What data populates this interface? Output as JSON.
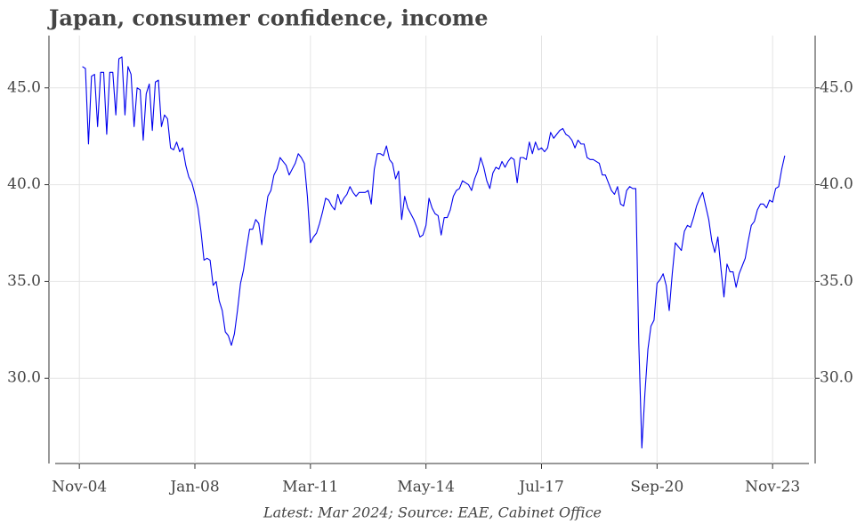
{
  "chart_data": {
    "type": "line",
    "title": "Japan, consumer confidence, income",
    "footnote": "Latest: Mar 2024; Source: EAE, Cabinet Office",
    "color": "#0000ee",
    "grid": true,
    "x": [
      "2004-12",
      "2005-01",
      "2005-02",
      "2005-03",
      "2005-04",
      "2005-05",
      "2005-06",
      "2005-07",
      "2005-08",
      "2005-09",
      "2005-10",
      "2005-11",
      "2005-12",
      "2006-01",
      "2006-02",
      "2006-03",
      "2006-04",
      "2006-05",
      "2006-06",
      "2006-07",
      "2006-08",
      "2006-09",
      "2006-10",
      "2006-11",
      "2006-12",
      "2007-01",
      "2007-02",
      "2007-03",
      "2007-04",
      "2007-05",
      "2007-06",
      "2007-07",
      "2007-08",
      "2007-09",
      "2007-10",
      "2007-11",
      "2007-12",
      "2008-01",
      "2008-02",
      "2008-03",
      "2008-04",
      "2008-05",
      "2008-06",
      "2008-07",
      "2008-08",
      "2008-09",
      "2008-10",
      "2008-11",
      "2008-12",
      "2009-01",
      "2009-02",
      "2009-03",
      "2009-04",
      "2009-05",
      "2009-06",
      "2009-07",
      "2009-08",
      "2009-09",
      "2009-10",
      "2009-11",
      "2009-12",
      "2010-01",
      "2010-02",
      "2010-03",
      "2010-04",
      "2010-05",
      "2010-06",
      "2010-07",
      "2010-08",
      "2010-09",
      "2010-10",
      "2010-11",
      "2010-12",
      "2011-01",
      "2011-02",
      "2011-03",
      "2011-04",
      "2011-05",
      "2011-06",
      "2011-07",
      "2011-08",
      "2011-09",
      "2011-10",
      "2011-11",
      "2011-12",
      "2012-01",
      "2012-02",
      "2012-03",
      "2012-04",
      "2012-05",
      "2012-06",
      "2012-07",
      "2012-08",
      "2012-09",
      "2012-10",
      "2012-11",
      "2012-12",
      "2013-01",
      "2013-02",
      "2013-03",
      "2013-04",
      "2013-05",
      "2013-06",
      "2013-07",
      "2013-08",
      "2013-09",
      "2013-10",
      "2013-11",
      "2013-12",
      "2014-01",
      "2014-02",
      "2014-03",
      "2014-04",
      "2014-05",
      "2014-06",
      "2014-07",
      "2014-08",
      "2014-09",
      "2014-10",
      "2014-11",
      "2014-12",
      "2015-01",
      "2015-02",
      "2015-03",
      "2015-04",
      "2015-05",
      "2015-06",
      "2015-07",
      "2015-08",
      "2015-09",
      "2015-10",
      "2015-11",
      "2015-12",
      "2016-01",
      "2016-02",
      "2016-03",
      "2016-04",
      "2016-05",
      "2016-06",
      "2016-07",
      "2016-08",
      "2016-09",
      "2016-10",
      "2016-11",
      "2016-12",
      "2017-01",
      "2017-02",
      "2017-03",
      "2017-04",
      "2017-05",
      "2017-06",
      "2017-07",
      "2017-08",
      "2017-09",
      "2017-10",
      "2017-11",
      "2017-12",
      "2018-01",
      "2018-02",
      "2018-03",
      "2018-04",
      "2018-05",
      "2018-06",
      "2018-07",
      "2018-08",
      "2018-09",
      "2018-10",
      "2018-11",
      "2018-12",
      "2019-01",
      "2019-02",
      "2019-03",
      "2019-04",
      "2019-05",
      "2019-06",
      "2019-07",
      "2019-08",
      "2019-09",
      "2019-10",
      "2019-11",
      "2019-12",
      "2020-01",
      "2020-02",
      "2020-03",
      "2020-04",
      "2020-05",
      "2020-06",
      "2020-07",
      "2020-08",
      "2020-09",
      "2020-10",
      "2020-11",
      "2020-12",
      "2021-01",
      "2021-02",
      "2021-03",
      "2021-04",
      "2021-05",
      "2021-06",
      "2021-07",
      "2021-08",
      "2021-09",
      "2021-10",
      "2021-11",
      "2021-12",
      "2022-01",
      "2022-02",
      "2022-03",
      "2022-04",
      "2022-05",
      "2022-06",
      "2022-07",
      "2022-08",
      "2022-09",
      "2022-10",
      "2022-11",
      "2022-12",
      "2023-01",
      "2023-02",
      "2023-03",
      "2023-04",
      "2023-05",
      "2023-06",
      "2023-07",
      "2023-08",
      "2023-09",
      "2023-10",
      "2023-11",
      "2023-12",
      "2024-01",
      "2024-02",
      "2024-03"
    ],
    "values": [
      46.1,
      46.0,
      42.1,
      45.6,
      45.7,
      43.0,
      45.8,
      45.8,
      42.6,
      45.8,
      45.8,
      43.6,
      46.5,
      46.6,
      43.6,
      46.1,
      45.7,
      43.0,
      45.0,
      44.9,
      42.3,
      44.7,
      45.2,
      42.8,
      45.3,
      45.4,
      43.0,
      43.6,
      43.4,
      41.9,
      41.8,
      42.2,
      41.7,
      41.9,
      41.0,
      40.4,
      40.1,
      39.5,
      38.8,
      37.6,
      36.1,
      36.2,
      36.1,
      34.8,
      35.0,
      34.0,
      33.5,
      32.4,
      32.2,
      31.7,
      32.3,
      33.5,
      34.9,
      35.6,
      36.7,
      37.7,
      37.7,
      38.2,
      38.0,
      36.9,
      38.3,
      39.4,
      39.7,
      40.5,
      40.8,
      41.4,
      41.2,
      41.0,
      40.5,
      40.8,
      41.1,
      41.6,
      41.4,
      41.1,
      39.4,
      37.0,
      37.3,
      37.5,
      38.0,
      38.6,
      39.3,
      39.2,
      38.9,
      38.7,
      39.5,
      39.0,
      39.3,
      39.5,
      39.9,
      39.6,
      39.4,
      39.6,
      39.6,
      39.6,
      39.7,
      39.0,
      40.8,
      41.6,
      41.6,
      41.5,
      42.0,
      41.3,
      41.1,
      40.3,
      40.7,
      38.2,
      39.4,
      38.8,
      38.5,
      38.2,
      37.8,
      37.3,
      37.4,
      37.9,
      39.3,
      38.8,
      38.5,
      38.4,
      37.4,
      38.3,
      38.3,
      38.7,
      39.4,
      39.7,
      39.8,
      40.2,
      40.1,
      40.0,
      39.7,
      40.3,
      40.7,
      41.4,
      40.9,
      40.2,
      39.8,
      40.6,
      40.9,
      40.8,
      41.2,
      40.9,
      41.2,
      41.4,
      41.3,
      40.1,
      41.4,
      41.4,
      41.3,
      42.2,
      41.6,
      42.2,
      41.8,
      41.9,
      41.7,
      41.9,
      42.7,
      42.4,
      42.6,
      42.8,
      42.9,
      42.6,
      42.5,
      42.3,
      41.9,
      42.3,
      42.1,
      42.1,
      41.4,
      41.3,
      41.3,
      41.2,
      41.1,
      40.5,
      40.5,
      40.1,
      39.7,
      39.5,
      39.9,
      39.0,
      38.9,
      39.7,
      39.9,
      39.8,
      39.8,
      31.8,
      26.4,
      29.2,
      31.5,
      32.7,
      33.0,
      34.9,
      35.1,
      35.4,
      34.8,
      33.5,
      35.4,
      37.0,
      36.8,
      36.6,
      37.6,
      37.9,
      37.8,
      38.3,
      38.9,
      39.3,
      39.6,
      38.9,
      38.2,
      37.1,
      36.5,
      37.3,
      35.7,
      34.2,
      35.9,
      35.5,
      35.5,
      34.7,
      35.4,
      35.8,
      36.2,
      37.1,
      37.9,
      38.1,
      38.7,
      39.0,
      39.0,
      38.8,
      39.2,
      39.1,
      39.8,
      39.9,
      40.8,
      41.5
    ],
    "xlim": [
      "2004-01",
      "2025-01"
    ],
    "xticks": [
      {
        "value": "2004-11",
        "label": "Nov-04"
      },
      {
        "value": "2008-01",
        "label": "Jan-08"
      },
      {
        "value": "2011-03",
        "label": "Mar-11"
      },
      {
        "value": "2014-05",
        "label": "May-14"
      },
      {
        "value": "2017-07",
        "label": "Jul-17"
      },
      {
        "value": "2020-09",
        "label": "Sep-20"
      },
      {
        "value": "2023-11",
        "label": "Nov-23"
      }
    ],
    "ylim": [
      25.6,
      47.7
    ],
    "yticks": [
      {
        "value": 30,
        "label": "30.0"
      },
      {
        "value": 35,
        "label": "35.0"
      },
      {
        "value": 40,
        "label": "40.0"
      },
      {
        "value": 45,
        "label": "45.0"
      }
    ]
  }
}
